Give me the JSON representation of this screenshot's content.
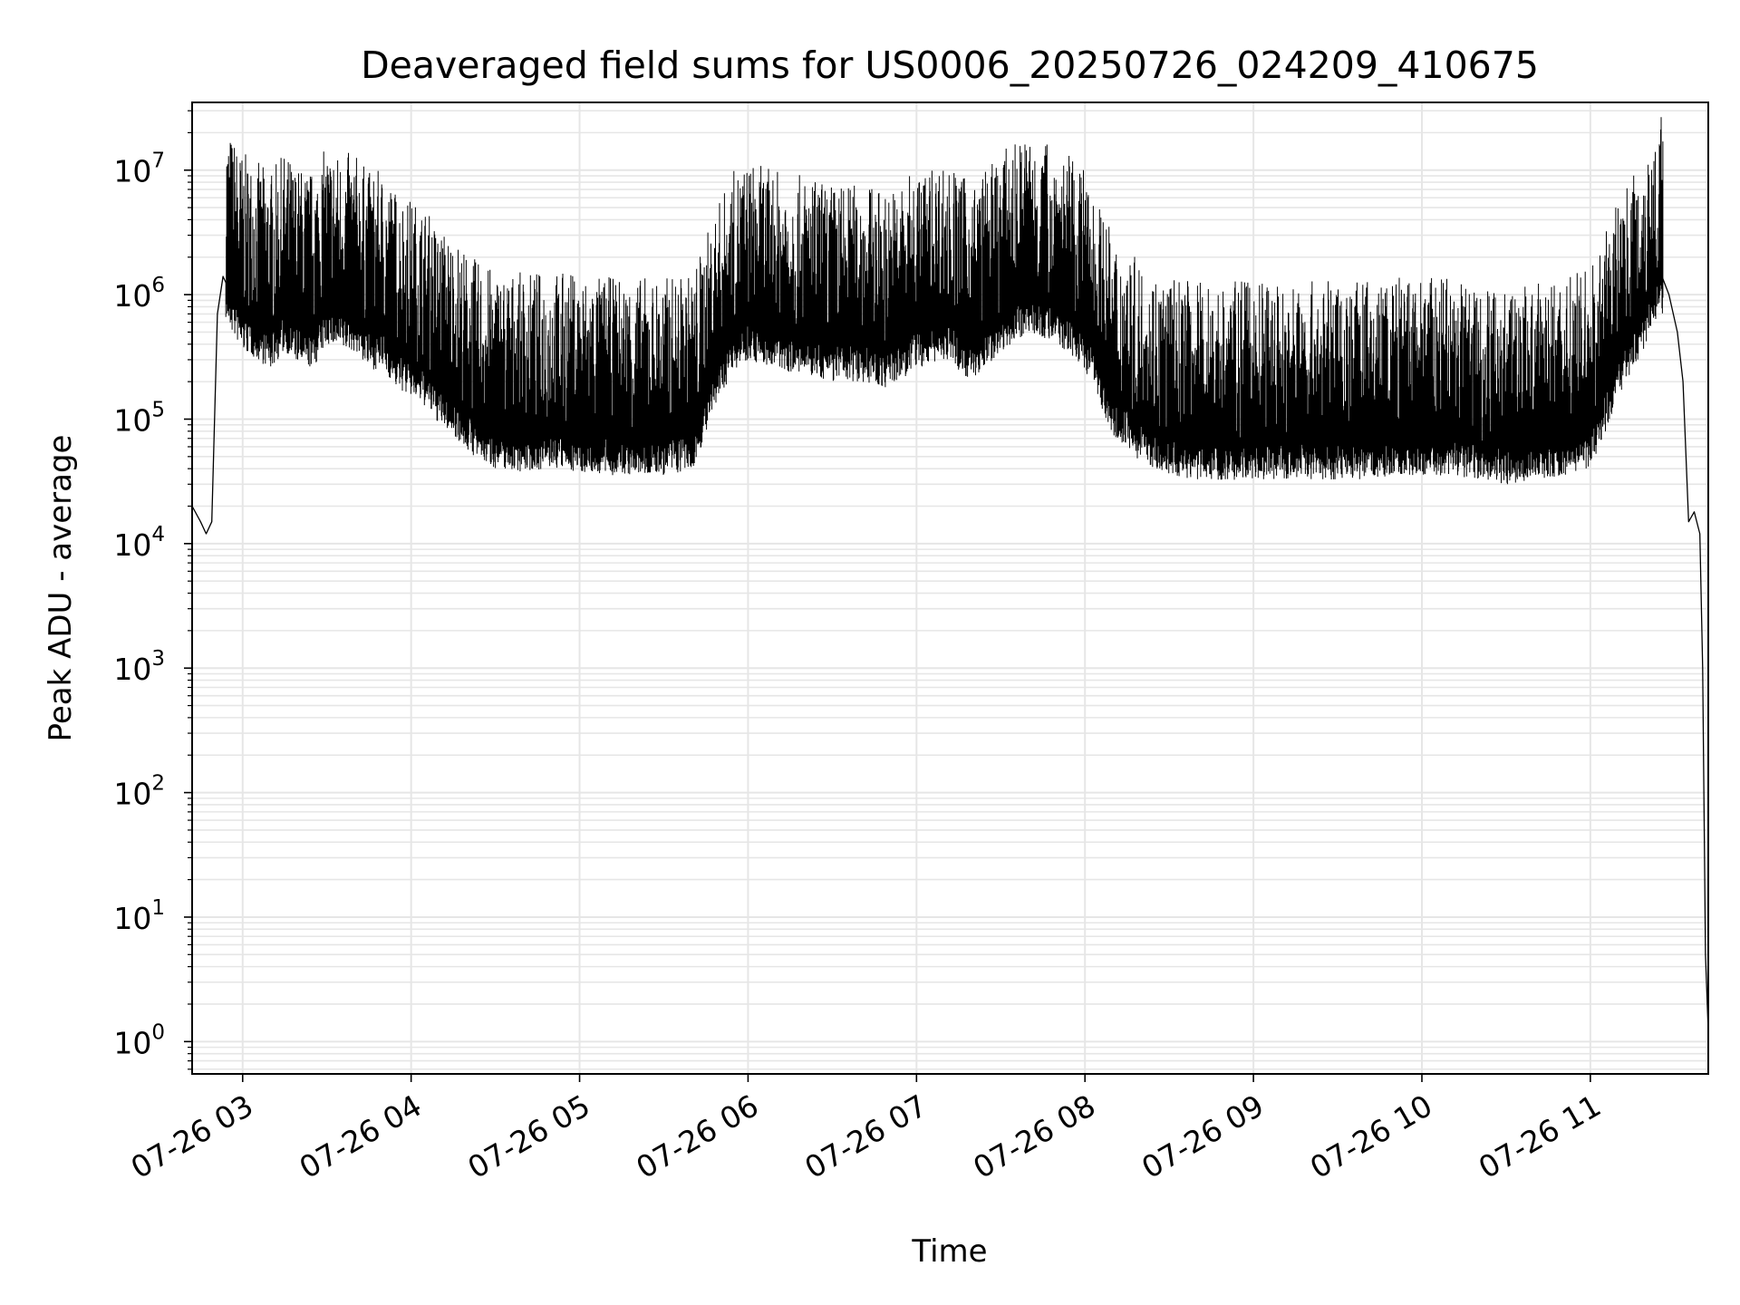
{
  "chart_data": {
    "type": "line",
    "title": "Deaveraged field sums for US0006_20250726_024209_410675",
    "xlabel": "Time",
    "ylabel": "Peak ADU - average",
    "yscale": "log",
    "ylim": [
      0.55,
      35000000
    ],
    "xlim": [
      "07-26 02:42",
      "07-26 11:42"
    ],
    "grid": true,
    "line_color": "#000000",
    "grid_color": "#e6e6e6",
    "x_ticks": [
      {
        "t": "07-26 03:00",
        "label": "07-26 03"
      },
      {
        "t": "07-26 04:00",
        "label": "07-26 04"
      },
      {
        "t": "07-26 05:00",
        "label": "07-26 05"
      },
      {
        "t": "07-26 06:00",
        "label": "07-26 06"
      },
      {
        "t": "07-26 07:00",
        "label": "07-26 07"
      },
      {
        "t": "07-26 08:00",
        "label": "07-26 08"
      },
      {
        "t": "07-26 09:00",
        "label": "07-26 09"
      },
      {
        "t": "07-26 10:00",
        "label": "07-26 10"
      },
      {
        "t": "07-26 11:00",
        "label": "07-26 11"
      }
    ],
    "y_ticks": [
      {
        "value": 1,
        "base": "10",
        "exp": "0"
      },
      {
        "value": 10,
        "base": "10",
        "exp": "1"
      },
      {
        "value": 100,
        "base": "10",
        "exp": "2"
      },
      {
        "value": 1000,
        "base": "10",
        "exp": "3"
      },
      {
        "value": 10000,
        "base": "10",
        "exp": "4"
      },
      {
        "value": 100000,
        "base": "10",
        "exp": "5"
      },
      {
        "value": 1000000,
        "base": "10",
        "exp": "6"
      },
      {
        "value": 10000000,
        "base": "10",
        "exp": "7"
      }
    ],
    "series": [
      {
        "x": [
          "07-26 02:42",
          "07-26 02:45",
          "07-26 02:47",
          "07-26 02:49",
          "07-26 02:51",
          "07-26 02:53",
          "07-26 02:56",
          "07-26 03:00",
          "07-26 03:05",
          "07-26 03:10",
          "07-26 03:15",
          "07-26 03:20",
          "07-26 03:25",
          "07-26 03:30",
          "07-26 03:35",
          "07-26 03:40",
          "07-26 03:45",
          "07-26 03:50",
          "07-26 03:55",
          "07-26 04:00",
          "07-26 04:05",
          "07-26 04:10",
          "07-26 04:15",
          "07-26 04:20",
          "07-26 04:25",
          "07-26 04:30",
          "07-26 04:40",
          "07-26 04:50",
          "07-26 05:00",
          "07-26 05:10",
          "07-26 05:20",
          "07-26 05:30",
          "07-26 05:40",
          "07-26 05:45",
          "07-26 05:50",
          "07-26 05:55",
          "07-26 06:00",
          "07-26 06:10",
          "07-26 06:20",
          "07-26 06:30",
          "07-26 06:40",
          "07-26 06:50",
          "07-26 07:00",
          "07-26 07:10",
          "07-26 07:20",
          "07-26 07:30",
          "07-26 07:40",
          "07-26 07:50",
          "07-26 08:00",
          "07-26 08:10",
          "07-26 08:20",
          "07-26 08:30",
          "07-26 08:40",
          "07-26 08:50",
          "07-26 09:00",
          "07-26 09:10",
          "07-26 09:20",
          "07-26 09:30",
          "07-26 09:40",
          "07-26 09:50",
          "07-26 10:00",
          "07-26 10:10",
          "07-26 10:20",
          "07-26 10:30",
          "07-26 10:40",
          "07-26 10:50",
          "07-26 11:00",
          "07-26 11:05",
          "07-26 11:10",
          "07-26 11:15",
          "07-26 11:20",
          "07-26 11:25",
          "07-26 11:28",
          "07-26 11:31",
          "07-26 11:33",
          "07-26 11:35",
          "07-26 11:37",
          "07-26 11:39",
          "07-26 11:40",
          "07-26 11:41",
          "07-26 11:42"
        ],
        "y": [
          20000,
          15000,
          12000,
          15000,
          700000,
          1400000,
          1000000,
          700000,
          600000,
          500000,
          700000,
          550000,
          500000,
          800000,
          700000,
          700000,
          500000,
          500000,
          350000,
          300000,
          250000,
          180000,
          150000,
          110000,
          90000,
          80000,
          75000,
          80000,
          75000,
          70000,
          70000,
          70000,
          75000,
          150000,
          300000,
          500000,
          600000,
          500000,
          450000,
          400000,
          400000,
          350000,
          500000,
          600000,
          400000,
          700000,
          1000000,
          800000,
          500000,
          150000,
          90000,
          70000,
          65000,
          65000,
          65000,
          65000,
          65000,
          65000,
          65000,
          70000,
          70000,
          70000,
          65000,
          60000,
          60000,
          70000,
          80000,
          150000,
          300000,
          500000,
          800000,
          1500000,
          1000000,
          500000,
          200000,
          15000,
          18000,
          12000,
          1000,
          5,
          1.2
        ]
      }
    ]
  }
}
